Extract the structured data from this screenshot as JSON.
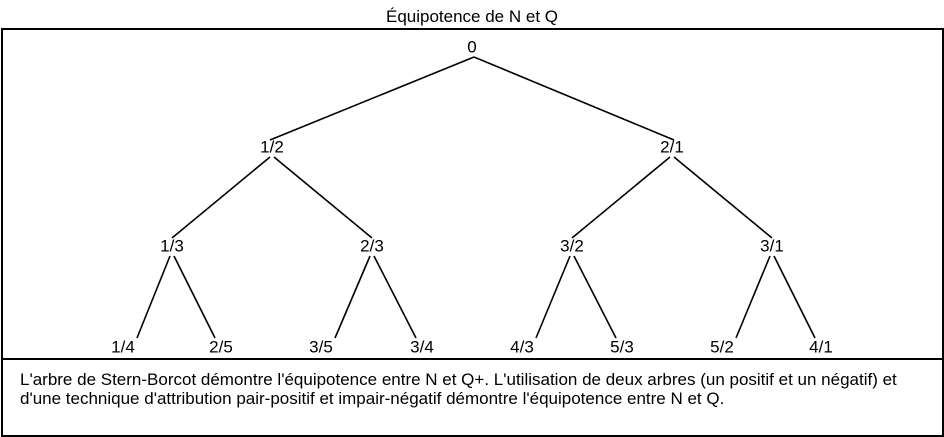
{
  "title": "Équipotence de N et Q",
  "tree": {
    "root": "0",
    "level1": [
      "1/2",
      "2/1"
    ],
    "level2": [
      "1/3",
      "2/3",
      "3/2",
      "3/1"
    ],
    "level3": [
      "1/4",
      "2/5",
      "3/5",
      "3/4",
      "4/3",
      "5/3",
      "5/2",
      "4/1"
    ]
  },
  "caption": "L'arbre de Stern-Borcot démontre l'équipotence entre N et Q+. L'utilisation de deux arbres (un positif et un négatif) et d'une technique d'attribution pair-positif et impair-négatif démontre l'équipotence entre N et Q."
}
